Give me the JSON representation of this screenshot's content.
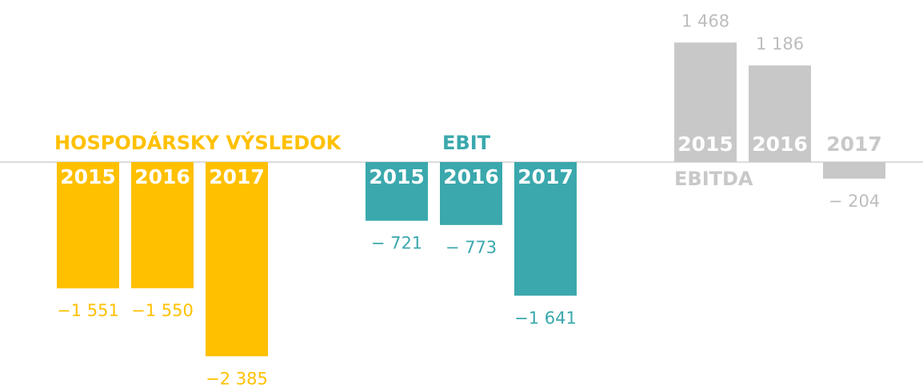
{
  "chart_data": {
    "type": "bar",
    "categories": [
      "2015",
      "2016",
      "2017"
    ],
    "series": [
      {
        "name": "HOSPODÁRSKY VÝSLEDOK",
        "color": "#ffc000",
        "values": [
          -1551,
          -1550,
          -2385
        ],
        "value_labels": [
          "−1 551",
          "−1 550",
          "−2 385"
        ]
      },
      {
        "name": "EBIT",
        "color": "#3aa8ad",
        "values": [
          -721,
          -773,
          -1641
        ],
        "value_labels": [
          "− 721",
          "− 773",
          "−1 641"
        ]
      },
      {
        "name": "EBITDA",
        "color": "#c8c8c8",
        "values": [
          1468,
          1186,
          -204
        ],
        "value_labels": [
          "1 468",
          "1 186",
          "− 204"
        ]
      }
    ]
  }
}
